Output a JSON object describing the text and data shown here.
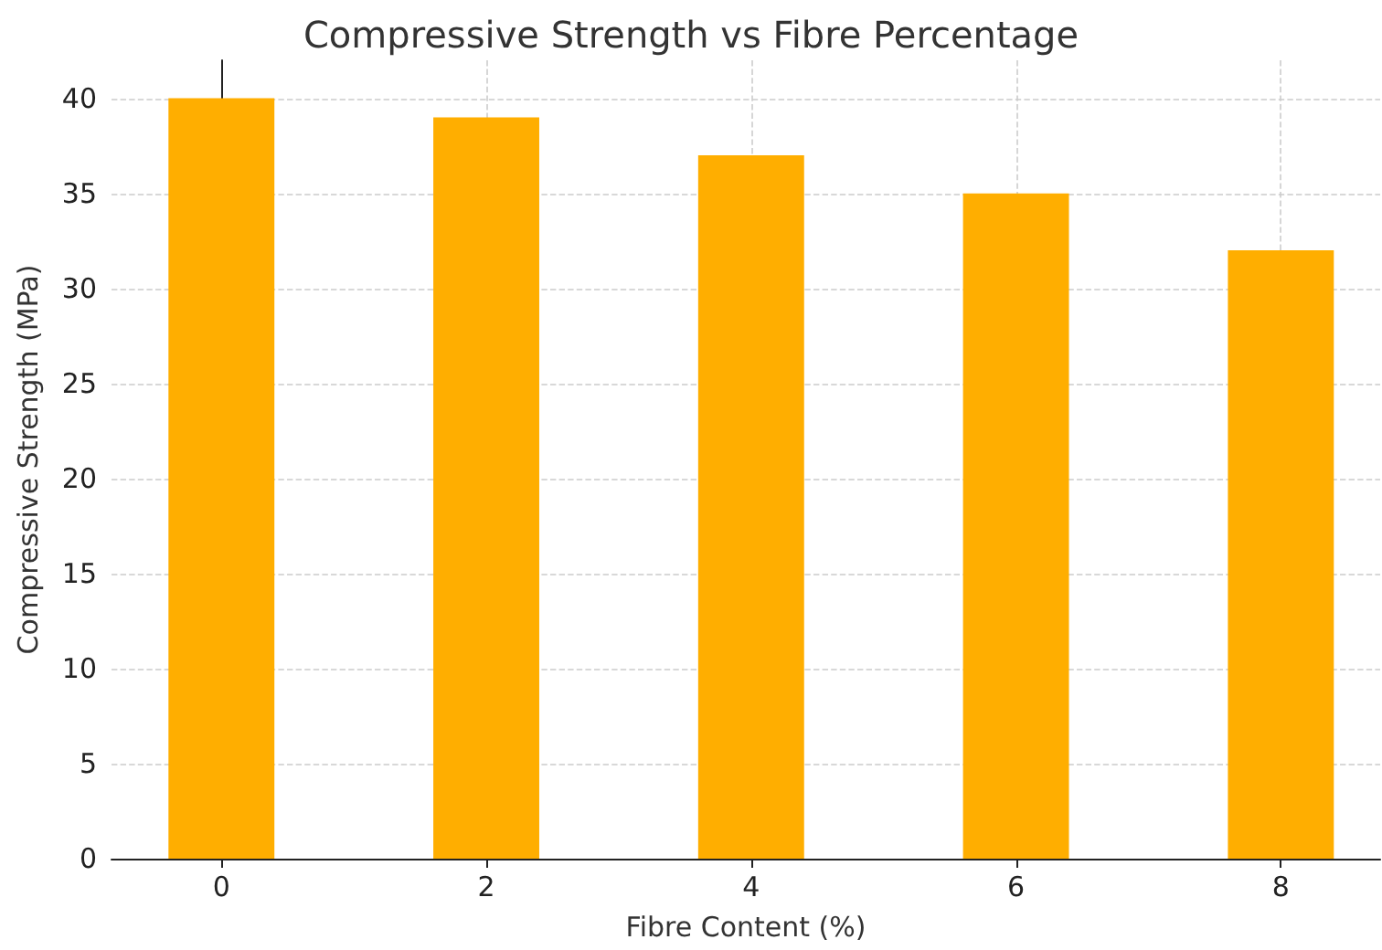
{
  "chart_data": {
    "type": "bar",
    "title": "Compressive Strength vs Fibre Percentage",
    "xlabel": "Fibre Content (%)",
    "ylabel": "Compressive Strength (MPa)",
    "x": [
      0,
      2,
      4,
      6,
      8
    ],
    "values": [
      40,
      39,
      37,
      35,
      32
    ],
    "color": "#ffae00",
    "xlim": [
      -0.83,
      8.75
    ],
    "xticks": [
      0,
      2,
      4,
      6,
      8
    ],
    "ylim": [
      0,
      42
    ],
    "yticks": [
      0,
      5,
      10,
      15,
      20,
      25,
      30,
      35,
      40
    ],
    "grid": true
  }
}
